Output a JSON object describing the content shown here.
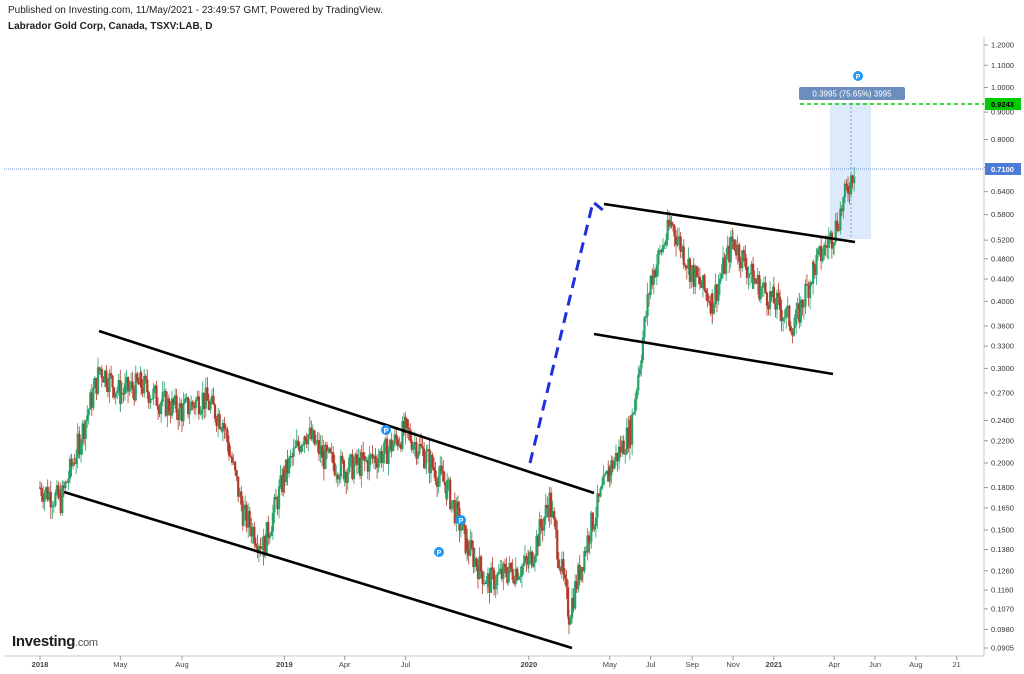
{
  "header": {
    "published": "Published on Investing.com, 11/May/2021 - 23:49:57 GMT, Powered by TradingView.",
    "symbol": "Labrador Gold Corp, Canada, TSXV:LAB, D"
  },
  "logo": {
    "main": "Investing",
    "suffix": ".com"
  },
  "colors": {
    "up": "#26a269",
    "down": "#b33a2a",
    "trend": "#000000",
    "dashed": "#1f2fdc",
    "target": "#00cc00",
    "price": "#4d7bd6",
    "range_box": "#d6e6fa",
    "range_label": "#6c8ebf"
  },
  "chart_data": {
    "type": "candlestick",
    "scale": "log",
    "title": "Labrador Gold Corp, Canada, TSXV:LAB, D",
    "ylim": [
      0.0905,
      1.2
    ],
    "y_ticks": [
      "1.2000",
      "1.1000",
      "1.0000",
      "0.9000",
      "0.8000",
      "0.7100",
      "0.6400",
      "0.5800",
      "0.5200",
      "0.4800",
      "0.4400",
      "0.4000",
      "0.3600",
      "0.3300",
      "0.3000",
      "0.2700",
      "0.2400",
      "0.2200",
      "0.2000",
      "0.1800",
      "0.1650",
      "0.1500",
      "0.1380",
      "0.1260",
      "0.1160",
      "0.1070",
      "0.0980",
      "0.0905"
    ],
    "x_ticks": [
      "2018",
      "May",
      "Aug",
      "2019",
      "Apr",
      "Jul",
      "2020",
      "May",
      "Jul",
      "Sep",
      "Nov",
      "2021",
      "Apr",
      "Jun",
      "Aug",
      "21"
    ],
    "current_price": "0.7100",
    "target_price": "0.9243",
    "range_label": "0.3995 (75.65%) 3995",
    "pivot_marker": "P",
    "monthly_closes": [
      {
        "month": "2018-01",
        "close": 0.18
      },
      {
        "month": "2018-02",
        "close": 0.17
      },
      {
        "month": "2018-03",
        "close": 0.22
      },
      {
        "month": "2018-04",
        "close": 0.3
      },
      {
        "month": "2018-05",
        "close": 0.27
      },
      {
        "month": "2018-06",
        "close": 0.28
      },
      {
        "month": "2018-07",
        "close": 0.26
      },
      {
        "month": "2018-08",
        "close": 0.25
      },
      {
        "month": "2018-09",
        "close": 0.265
      },
      {
        "month": "2018-10",
        "close": 0.24
      },
      {
        "month": "2018-11",
        "close": 0.16
      },
      {
        "month": "2018-12",
        "close": 0.14
      },
      {
        "month": "2019-01",
        "close": 0.19
      },
      {
        "month": "2019-02",
        "close": 0.23
      },
      {
        "month": "2019-03",
        "close": 0.205
      },
      {
        "month": "2019-04",
        "close": 0.195
      },
      {
        "month": "2019-05",
        "close": 0.2
      },
      {
        "month": "2019-06",
        "close": 0.21
      },
      {
        "month": "2019-07",
        "close": 0.23
      },
      {
        "month": "2019-08",
        "close": 0.205
      },
      {
        "month": "2019-09",
        "close": 0.18
      },
      {
        "month": "2019-10",
        "close": 0.14
      },
      {
        "month": "2019-11",
        "close": 0.12
      },
      {
        "month": "2019-12",
        "close": 0.125
      },
      {
        "month": "2020-01",
        "close": 0.13
      },
      {
        "month": "2020-02",
        "close": 0.17
      },
      {
        "month": "2020-03",
        "close": 0.105
      },
      {
        "month": "2020-04",
        "close": 0.15
      },
      {
        "month": "2020-05",
        "close": 0.195
      },
      {
        "month": "2020-06",
        "close": 0.23
      },
      {
        "month": "2020-07",
        "close": 0.44
      },
      {
        "month": "2020-08",
        "close": 0.56
      },
      {
        "month": "2020-09",
        "close": 0.45
      },
      {
        "month": "2020-10",
        "close": 0.4
      },
      {
        "month": "2020-11",
        "close": 0.52
      },
      {
        "month": "2020-12",
        "close": 0.44
      },
      {
        "month": "2021-01",
        "close": 0.4
      },
      {
        "month": "2021-02",
        "close": 0.36
      },
      {
        "month": "2021-03",
        "close": 0.46
      },
      {
        "month": "2021-04",
        "close": 0.54
      },
      {
        "month": "2021-05",
        "close": 0.71
      }
    ],
    "annotations": [
      {
        "kind": "trendline",
        "label": "lower channel 2018-2020",
        "from": {
          "date": "2018-01-28",
          "y": 0.176
        },
        "to": {
          "date": "2020-06-21",
          "y": 0.0905
        }
      },
      {
        "kind": "trendline",
        "label": "upper channel 2018-2020",
        "from": {
          "date": "2018-04-24",
          "y": 0.345
        },
        "to": {
          "date": "2020-07-06",
          "y": 0.176
        }
      },
      {
        "kind": "trendline",
        "label": "flag top",
        "from": {
          "date": "2020-07-17",
          "y": 0.625
        },
        "to": {
          "date": "2021-04-05",
          "y": 0.513
        }
      },
      {
        "kind": "trendline",
        "label": "flag bottom",
        "from": {
          "date": "2020-07-09",
          "y": 0.348
        },
        "to": {
          "date": "2021-04-03",
          "y": 0.292
        }
      },
      {
        "kind": "dashed_arrow",
        "label": "flagpole",
        "from": {
          "date": "2020-05-20",
          "y": 0.203
        },
        "to": {
          "date": "2020-07-08",
          "y": 0.615
        }
      }
    ]
  }
}
